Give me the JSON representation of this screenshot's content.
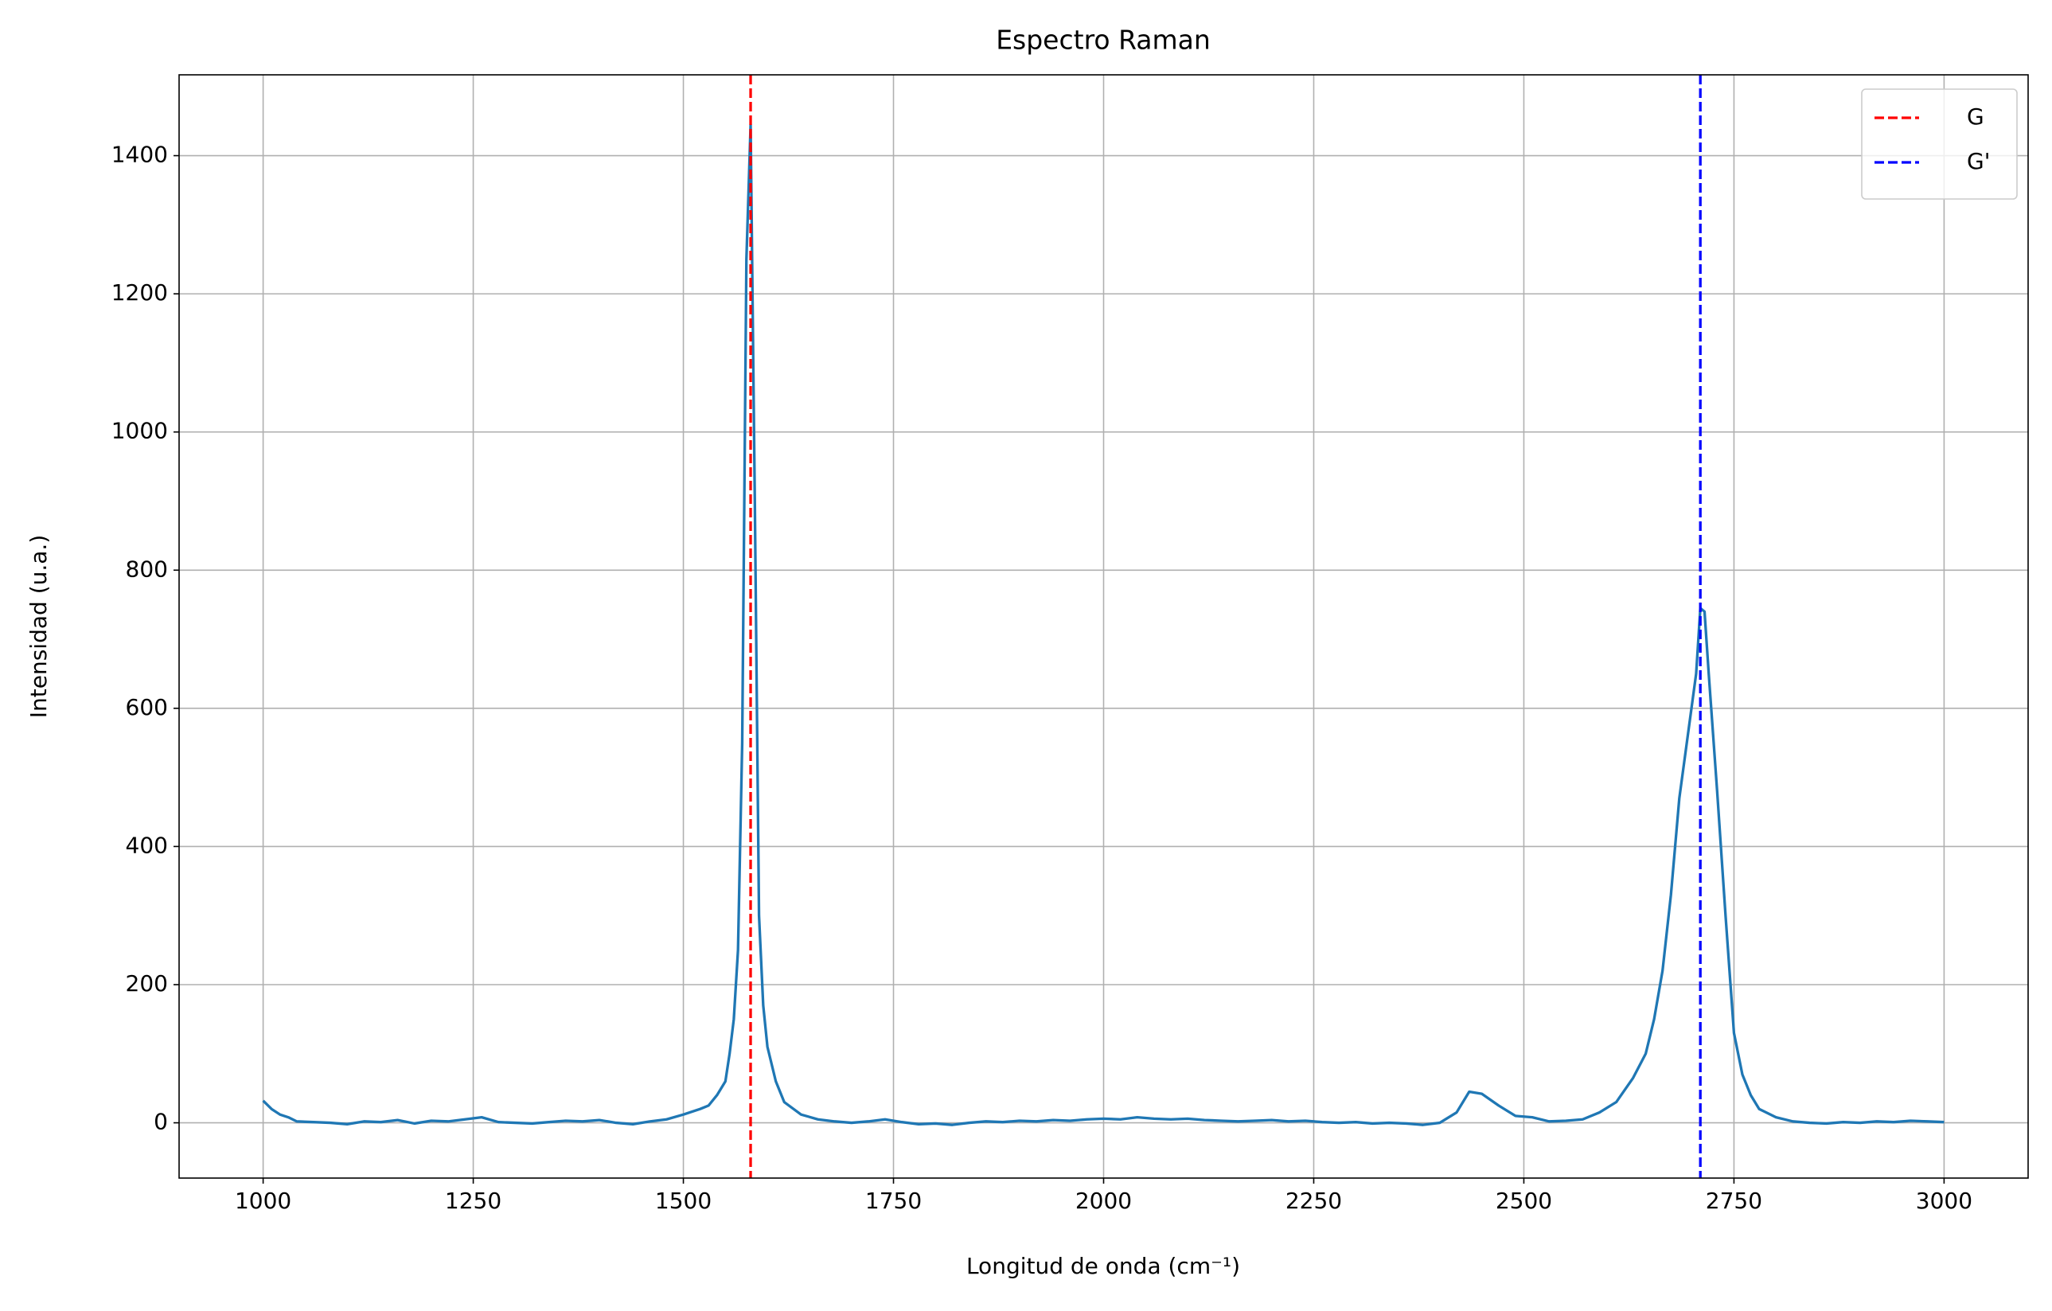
{
  "chart_data": {
    "type": "line",
    "title": "Espectro Raman",
    "xlabel": "Longitud de onda (cm⁻¹)",
    "ylabel": "Intensidad (u.a.)",
    "xlim": [
      900,
      3100
    ],
    "ylim": [
      -80,
      1517
    ],
    "xticks": [
      1000,
      1250,
      1500,
      1750,
      2000,
      2250,
      2500,
      2750,
      3000
    ],
    "yticks": [
      0,
      200,
      400,
      600,
      800,
      1000,
      1200,
      1400
    ],
    "grid": true,
    "legend": "upper right",
    "x": [
      1000,
      1010,
      1020,
      1030,
      1040,
      1060,
      1080,
      1100,
      1120,
      1140,
      1160,
      1180,
      1200,
      1220,
      1240,
      1260,
      1280,
      1300,
      1320,
      1340,
      1360,
      1380,
      1400,
      1420,
      1440,
      1460,
      1480,
      1500,
      1520,
      1530,
      1540,
      1550,
      1555,
      1560,
      1565,
      1570,
      1575,
      1580,
      1585,
      1590,
      1595,
      1600,
      1610,
      1620,
      1640,
      1660,
      1680,
      1700,
      1720,
      1740,
      1760,
      1780,
      1800,
      1820,
      1840,
      1860,
      1880,
      1900,
      1920,
      1940,
      1960,
      1980,
      2000,
      2020,
      2040,
      2060,
      2080,
      2100,
      2120,
      2140,
      2160,
      2180,
      2200,
      2220,
      2240,
      2260,
      2280,
      2300,
      2320,
      2340,
      2360,
      2380,
      2400,
      2420,
      2435,
      2450,
      2470,
      2490,
      2510,
      2530,
      2550,
      2570,
      2590,
      2610,
      2630,
      2645,
      2655,
      2665,
      2675,
      2685,
      2695,
      2705,
      2710,
      2715,
      2720,
      2730,
      2740,
      2750,
      2760,
      2770,
      2780,
      2800,
      2820,
      2840,
      2860,
      2880,
      2900,
      2920,
      2940,
      2960,
      2980,
      3000
    ],
    "series": [
      {
        "color": "#1f77b4",
        "values": [
          32,
          20,
          12,
          8,
          2,
          1,
          0,
          -2,
          2,
          1,
          4,
          -1,
          3,
          2,
          5,
          8,
          1,
          0,
          -1,
          1,
          3,
          2,
          4,
          0,
          -2,
          2,
          5,
          12,
          20,
          25,
          40,
          60,
          100,
          150,
          250,
          550,
          1250,
          1445,
          900,
          300,
          170,
          110,
          60,
          30,
          12,
          5,
          2,
          0,
          2,
          5,
          1,
          -2,
          -1,
          -3,
          0,
          2,
          1,
          3,
          2,
          4,
          3,
          5,
          6,
          5,
          8,
          6,
          5,
          6,
          4,
          3,
          2,
          3,
          4,
          2,
          3,
          1,
          0,
          1,
          -1,
          0,
          -1,
          -3,
          0,
          15,
          45,
          42,
          25,
          10,
          8,
          2,
          3,
          5,
          15,
          30,
          65,
          100,
          150,
          220,
          330,
          470,
          560,
          650,
          745,
          740,
          650,
          480,
          300,
          130,
          70,
          40,
          20,
          8,
          2,
          0,
          -1,
          1,
          0,
          2,
          1,
          3,
          2,
          1
        ]
      }
    ],
    "vlines": [
      {
        "name": "G",
        "x": 1580,
        "color": "#ff0000"
      },
      {
        "name": "G'",
        "x": 2710,
        "color": "#0000ff"
      }
    ]
  }
}
